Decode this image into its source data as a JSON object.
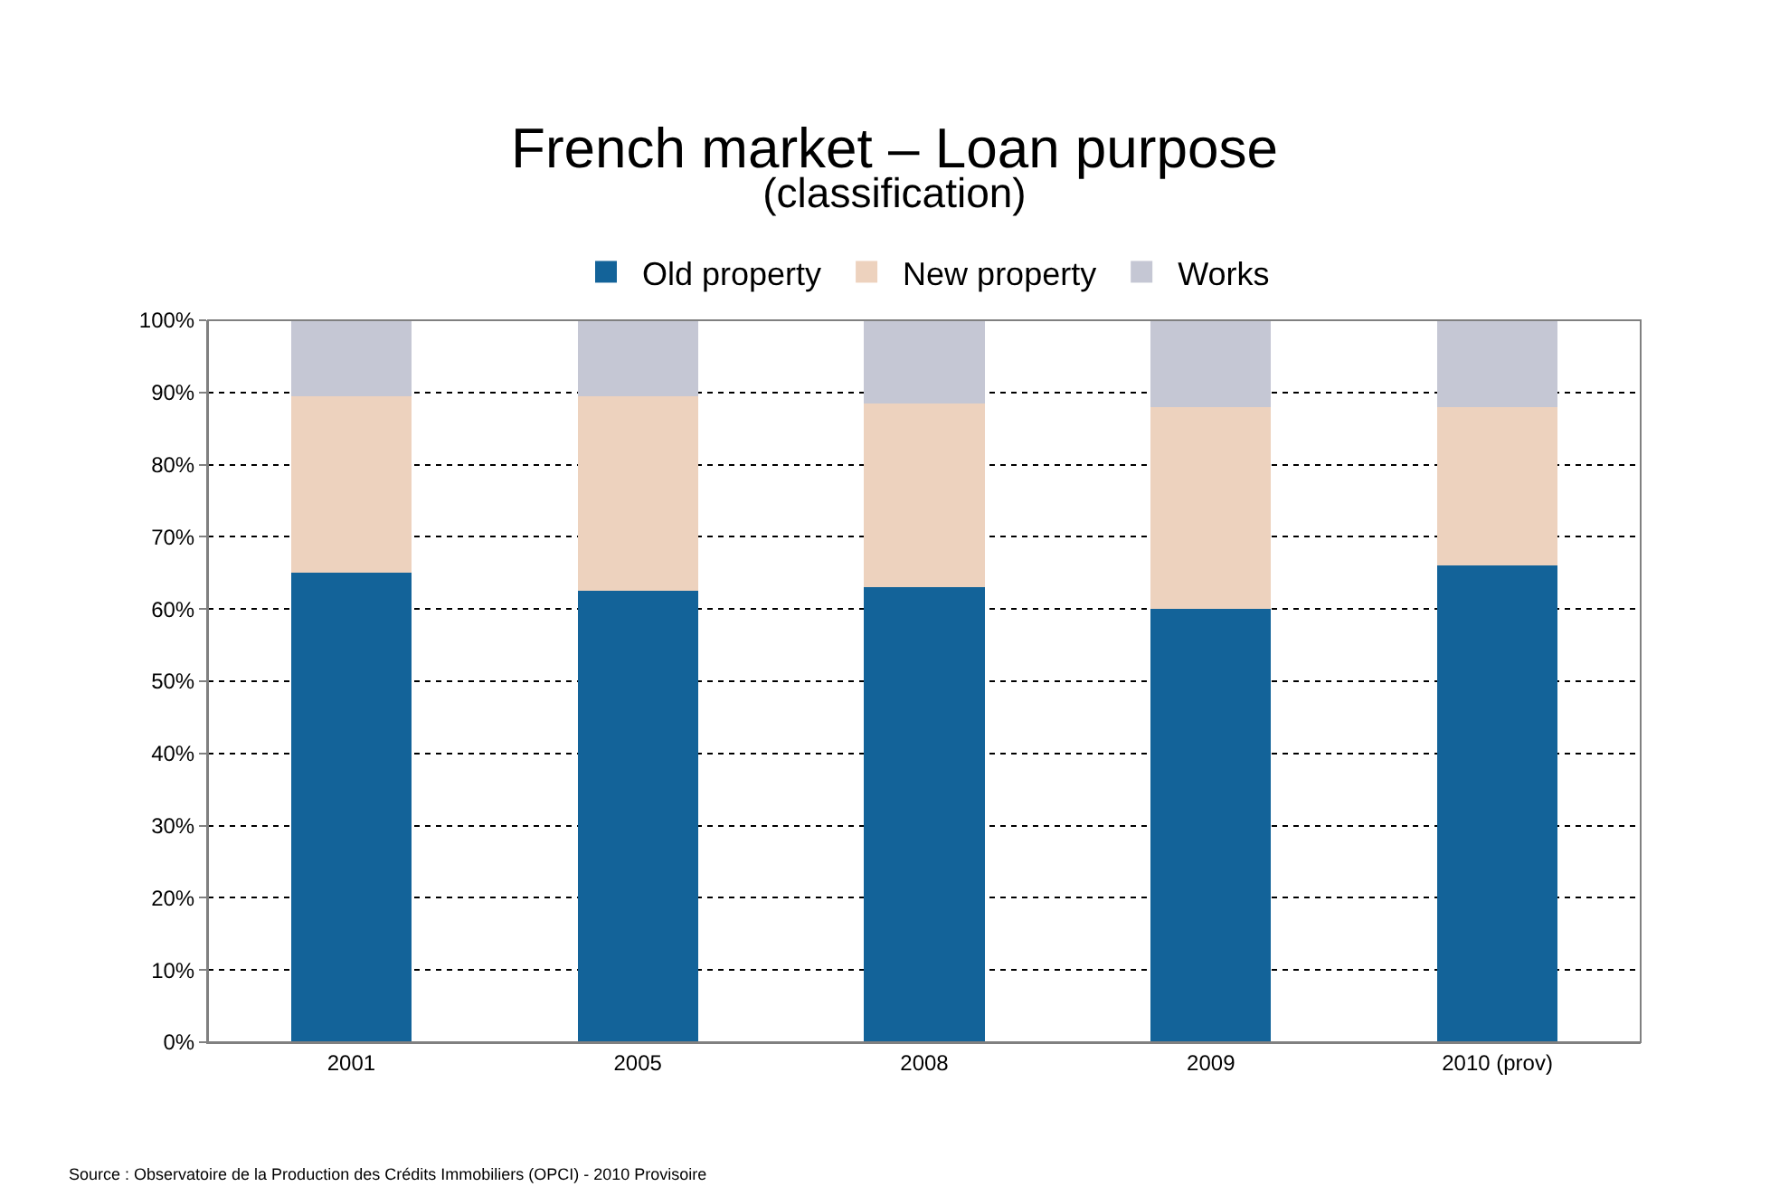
{
  "chart_data": {
    "type": "bar",
    "stacked": true,
    "title": "French market – Loan purpose",
    "subtitle": "(classification)",
    "categories": [
      "2001",
      "2005",
      "2008",
      "2009",
      "2010 (prov)"
    ],
    "series": [
      {
        "name": "Old property",
        "color": "#136399",
        "values": [
          65,
          62.5,
          63,
          60,
          66
        ]
      },
      {
        "name": "New property",
        "color": "#edd2be",
        "values": [
          24.5,
          27,
          25.5,
          28,
          22
        ]
      },
      {
        "name": "Works",
        "color": "#c5c7d4",
        "values": [
          10.5,
          10.5,
          11.5,
          12,
          12
        ]
      }
    ],
    "ylim": [
      0,
      100
    ],
    "yticks": [
      {
        "value": 0,
        "label": "0%"
      },
      {
        "value": 10,
        "label": "10%"
      },
      {
        "value": 20,
        "label": "20%"
      },
      {
        "value": 30,
        "label": "30%"
      },
      {
        "value": 40,
        "label": "40%"
      },
      {
        "value": 50,
        "label": "50%"
      },
      {
        "value": 60,
        "label": "60%"
      },
      {
        "value": 70,
        "label": "70%"
      },
      {
        "value": 80,
        "label": "80%"
      },
      {
        "value": 90,
        "label": "90%"
      },
      {
        "value": 100,
        "label": "100%"
      }
    ],
    "grid": "y",
    "legend": "top",
    "annotations": [
      "Source : Observatoire de la Production des Crédits Immobiliers (OPCI) - 2010 Provisoire"
    ]
  }
}
